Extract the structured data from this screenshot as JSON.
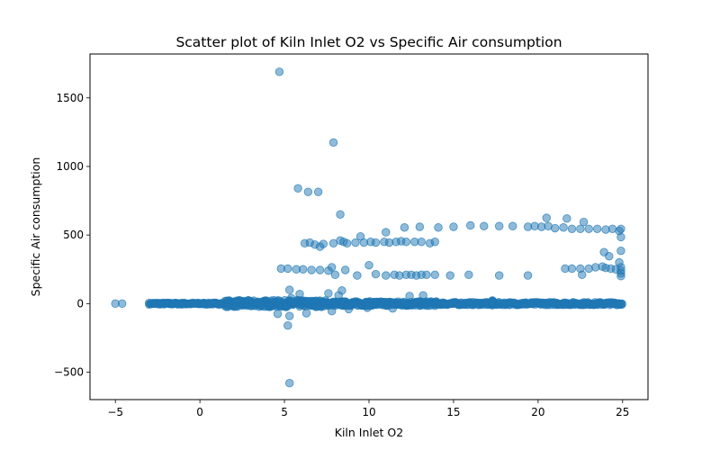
{
  "chart_data": {
    "type": "scatter",
    "title": "Scatter plot of Kiln Inlet O2 vs Specific Air consumption",
    "xlabel": "Kiln Inlet O2",
    "ylabel": "Specific Air consumption",
    "xlim": [
      -6.5,
      26.5
    ],
    "ylim": [
      -700,
      1820
    ],
    "xticks": [
      -5,
      0,
      5,
      10,
      15,
      20,
      25
    ],
    "yticks": [
      -500,
      0,
      500,
      1000,
      1500
    ],
    "xtick_labels": [
      "−5",
      "0",
      "5",
      "10",
      "15",
      "20",
      "25"
    ],
    "ytick_labels": [
      "−500",
      "0",
      "500",
      "1000",
      "1500"
    ],
    "grid": false,
    "marker_color": "#1f77b4",
    "marker_alpha": 0.5,
    "points": [
      [
        -5.0,
        0
      ],
      [
        -4.6,
        0
      ],
      [
        4.7,
        1690
      ],
      [
        7.9,
        1175
      ],
      [
        5.8,
        840
      ],
      [
        6.4,
        815
      ],
      [
        7.0,
        815
      ],
      [
        8.3,
        650
      ],
      [
        20.5,
        625
      ],
      [
        21.7,
        620
      ],
      [
        22.7,
        595
      ],
      [
        5.3,
        100
      ],
      [
        4.6,
        -75
      ],
      [
        5.3,
        -90
      ],
      [
        6.3,
        -70
      ],
      [
        5.2,
        -160
      ],
      [
        5.3,
        -580
      ],
      [
        7.8,
        -55
      ],
      [
        8.8,
        -40
      ],
      [
        9.9,
        -30
      ],
      [
        11.4,
        -35
      ],
      [
        4.8,
        255
      ],
      [
        5.2,
        255
      ],
      [
        5.7,
        250
      ],
      [
        6.1,
        250
      ],
      [
        6.6,
        245
      ],
      [
        7.1,
        245
      ],
      [
        7.6,
        240
      ],
      [
        7.8,
        265
      ],
      [
        8.0,
        210
      ],
      [
        8.6,
        245
      ],
      [
        9.3,
        205
      ],
      [
        10.0,
        280
      ],
      [
        10.4,
        215
      ],
      [
        11.0,
        205
      ],
      [
        11.5,
        210
      ],
      [
        11.8,
        205
      ],
      [
        12.2,
        210
      ],
      [
        12.5,
        210
      ],
      [
        12.8,
        205
      ],
      [
        13.1,
        210
      ],
      [
        13.4,
        210
      ],
      [
        13.9,
        210
      ],
      [
        14.8,
        205
      ],
      [
        15.9,
        210
      ],
      [
        17.7,
        205
      ],
      [
        19.4,
        205
      ],
      [
        5.4,
        40
      ],
      [
        5.9,
        70
      ],
      [
        7.6,
        75
      ],
      [
        8.2,
        60
      ],
      [
        8.4,
        95
      ],
      [
        12.4,
        55
      ],
      [
        13.2,
        60
      ],
      [
        6.2,
        440
      ],
      [
        6.5,
        445
      ],
      [
        6.8,
        430
      ],
      [
        7.1,
        415
      ],
      [
        7.3,
        435
      ],
      [
        7.9,
        440
      ],
      [
        8.3,
        460
      ],
      [
        8.5,
        450
      ],
      [
        8.7,
        440
      ],
      [
        9.2,
        445
      ],
      [
        9.5,
        490
      ],
      [
        9.7,
        445
      ],
      [
        10.1,
        450
      ],
      [
        10.4,
        445
      ],
      [
        10.9,
        450
      ],
      [
        11.2,
        445
      ],
      [
        11.6,
        450
      ],
      [
        11.9,
        455
      ],
      [
        12.2,
        450
      ],
      [
        12.7,
        450
      ],
      [
        13.1,
        450
      ],
      [
        13.6,
        440
      ],
      [
        13.9,
        450
      ],
      [
        11.0,
        520
      ],
      [
        12.1,
        555
      ],
      [
        13.0,
        560
      ],
      [
        14.1,
        555
      ],
      [
        15.0,
        560
      ],
      [
        16.0,
        570
      ],
      [
        16.8,
        565
      ],
      [
        17.7,
        565
      ],
      [
        18.5,
        565
      ],
      [
        19.4,
        560
      ],
      [
        19.8,
        565
      ],
      [
        20.2,
        560
      ],
      [
        20.6,
        565
      ],
      [
        21.0,
        550
      ],
      [
        21.5,
        555
      ],
      [
        22.0,
        545
      ],
      [
        22.5,
        545
      ],
      [
        23.0,
        545
      ],
      [
        23.5,
        545
      ],
      [
        24.0,
        540
      ],
      [
        24.4,
        545
      ],
      [
        24.8,
        530
      ],
      [
        24.9,
        545
      ],
      [
        24.9,
        485
      ],
      [
        21.6,
        255
      ],
      [
        22.0,
        255
      ],
      [
        22.5,
        255
      ],
      [
        23.0,
        255
      ],
      [
        23.4,
        265
      ],
      [
        23.8,
        270
      ],
      [
        24.0,
        260
      ],
      [
        24.3,
        255
      ],
      [
        24.6,
        250
      ],
      [
        24.9,
        240
      ],
      [
        24.9,
        220
      ],
      [
        24.9,
        200
      ],
      [
        24.9,
        265
      ],
      [
        23.9,
        375
      ],
      [
        24.2,
        345
      ],
      [
        24.8,
        300
      ],
      [
        24.9,
        385
      ],
      [
        22.6,
        210
      ]
    ],
    "band": {
      "segments": [
        {
          "x": [
            -3.0,
            1.5
          ],
          "y": 0,
          "spread": 6
        },
        {
          "x": [
            1.5,
            7.5
          ],
          "y": 0,
          "spread": 24
        },
        {
          "x": [
            7.5,
            14.0
          ],
          "y": 0,
          "spread": 16
        },
        {
          "x": [
            14.0,
            25.0
          ],
          "y": 0,
          "spread": 10
        }
      ]
    }
  }
}
